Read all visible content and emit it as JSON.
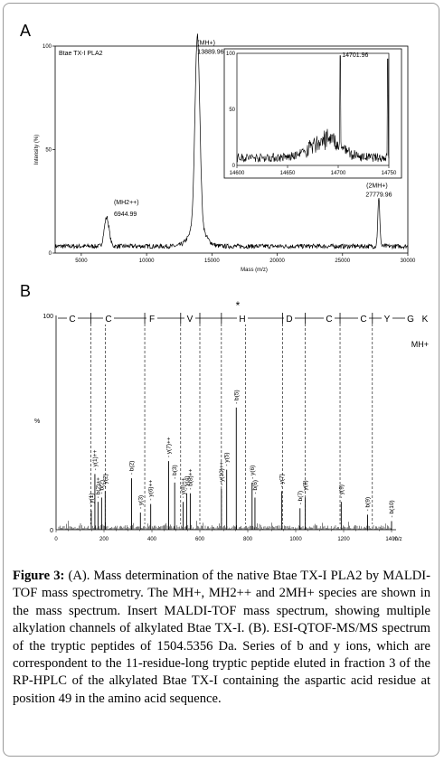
{
  "figure": {
    "panel_a_label": "A",
    "panel_b_label": "B",
    "caption_title": "Figure 3:",
    "caption_text": "(A). Mass determination of the native Btae TX-I PLA2 by MALDI-TOF mass spectrometry. The MH+, MH2++ and 2MH+ species are shown in the mass spectrum. Insert MALDI-TOF mass spectrum, showing multiple alkylation channels of alkylated Btae TX-I. (B). ESI-QTOF-MS/MS spectrum of the tryptic peptides of 1504.5356 Da. Series of b and y ions, which are correspondent to the 11-residue-long tryptic peptide eluted in fraction 3 of the RP-HPLC of the alkylated Btae TX-I containing the aspartic acid residue at position 49 in the amino acid sequence."
  },
  "chart_data": [
    {
      "type": "line",
      "title": "Btae TX-I PLA2",
      "xlabel": "Mass (m/z)",
      "ylabel": "Intensity (%)",
      "xlim": [
        3000,
        30000
      ],
      "ylim": [
        0,
        100
      ],
      "xticks": [
        "5000",
        "10000",
        "15000",
        "20000",
        "25000",
        "30000"
      ],
      "yticks": [
        "0",
        "50",
        "100"
      ],
      "peaks": [
        {
          "x": 6944.99,
          "y": 14,
          "label_species": "(MH2++)",
          "label_value": "6944.99"
        },
        {
          "x": 13889.96,
          "y": 92,
          "label_species": "(MH+)",
          "label_value": "13889.96"
        },
        {
          "x": 27779.96,
          "y": 23,
          "label_species": "(2MH+)",
          "label_value": "27779.96"
        }
      ],
      "inset": {
        "type": "line",
        "xlim": [
          14600,
          14750
        ],
        "ylim": [
          0,
          100
        ],
        "xticks": [
          "14600",
          "14650",
          "14700",
          "14750"
        ],
        "yticks": [
          "0",
          "50",
          "100"
        ],
        "peak": {
          "x": 14701.96,
          "y": 100,
          "label": "14701.96"
        }
      }
    },
    {
      "type": "bar",
      "xlabel": "m/z",
      "ylabel": "%",
      "xlim": [
        0,
        1400
      ],
      "ylim": [
        0,
        100
      ],
      "xticks": [
        "0",
        "200",
        "400",
        "600",
        "800",
        "1000",
        "1200",
        "1400"
      ],
      "ytick_top": "100",
      "ytick_bottom": "0",
      "sequence": [
        "C",
        "C",
        "F",
        "V",
        "H",
        "D",
        "C",
        "C",
        "Y",
        "G",
        "K"
      ],
      "sequence_boundaries_mz": [
        145,
        205,
        370,
        520,
        600,
        690,
        790,
        945,
        1040,
        1185,
        1320
      ],
      "star_label": "*",
      "precursor_label": "MH+",
      "ions": [
        {
          "label": "y(1)",
          "mz": 147,
          "h": 9
        },
        {
          "label": "y(1)++",
          "mz": 162,
          "h": 26
        },
        {
          "label": "b(2)++",
          "mz": 175,
          "h": 13
        },
        {
          "label": "b(2)",
          "mz": 190,
          "h": 15
        },
        {
          "label": "y(2)",
          "mz": 205,
          "h": 18
        },
        {
          "label": "y(3)",
          "mz": 352,
          "h": 8
        },
        {
          "label": "b(2)",
          "mz": 315,
          "h": 24
        },
        {
          "label": "y(6)++",
          "mz": 395,
          "h": 12
        },
        {
          "label": "y(7)++",
          "mz": 470,
          "h": 32
        },
        {
          "label": "b(3)",
          "mz": 495,
          "h": 22
        },
        {
          "label": "y(8)++",
          "mz": 530,
          "h": 13
        },
        {
          "label": "y(4)",
          "mz": 545,
          "h": 17
        },
        {
          "label": "b(8)++",
          "mz": 560,
          "h": 17
        },
        {
          "label": "y(10)++",
          "mz": 690,
          "h": 19
        },
        {
          "label": "y(5)",
          "mz": 712,
          "h": 28
        },
        {
          "label": "b(5)",
          "mz": 752,
          "h": 57
        },
        {
          "label": "y(6)",
          "mz": 818,
          "h": 22
        },
        {
          "label": "b(6)",
          "mz": 830,
          "h": 15
        },
        {
          "label": "y(7)",
          "mz": 942,
          "h": 18
        },
        {
          "label": "b(7)",
          "mz": 1018,
          "h": 10
        },
        {
          "label": "y(8)",
          "mz": 1040,
          "h": 15
        },
        {
          "label": "y(9)",
          "mz": 1190,
          "h": 13
        },
        {
          "label": "b(9)",
          "mz": 1300,
          "h": 7
        },
        {
          "label": "b(10)",
          "mz": 1400,
          "h": 4
        }
      ]
    }
  ]
}
